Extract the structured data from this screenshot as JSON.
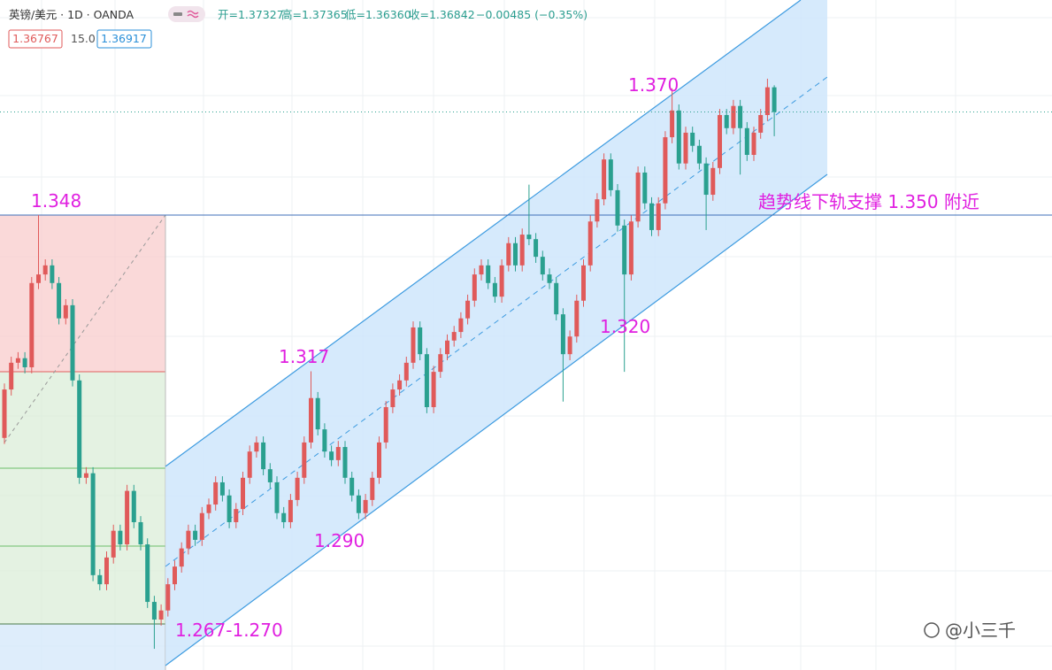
{
  "chart_data": {
    "type": "candlestick",
    "title": "英镑/美元 · 1D · OANDA",
    "ohlc_labels": [
      "开=1.37327",
      "高=1.37365",
      "低=1.36360",
      "收=1.36842"
    ],
    "change": "−0.00485 (−0.35%)",
    "price_boxes": [
      "1.36767",
      "15.0",
      "1.36917"
    ],
    "annotations": [
      "1.348",
      "1.317",
      "1.290",
      "1.320",
      "1.370",
      "1.267-1.270",
      "趋势线下轨支撑 1.350 附近"
    ],
    "watermark": "@小三千",
    "up_color": "#e05a5a",
    "down_color": "#2aa08f",
    "ylim": [
      1.2578,
      1.3906
    ],
    "open": [
      1.3038,
      1.3134,
      1.3187,
      1.3196,
      1.3178,
      1.3345,
      1.3362,
      1.338,
      1.3345,
      1.3275,
      1.3301,
      1.3152,
      1.2959,
      1.2968,
      1.2766,
      1.2748,
      1.2801,
      1.2854,
      1.2827,
      1.2933,
      1.2871,
      1.2827,
      1.2713,
      1.2678,
      1.2696,
      1.2748,
      1.2783,
      1.2819,
      1.2854,
      1.2836,
      1.2889,
      1.2906,
      1.295,
      1.2924,
      1.2871,
      1.2897,
      1.2959,
      1.3011,
      1.3029,
      1.2976,
      1.295,
      1.2889,
      1.2871,
      1.2915,
      1.2959,
      1.3029,
      1.3117,
      1.3055,
      1.3011,
      1.2994,
      1.302,
      1.2959,
      1.2924,
      1.2889,
      1.2915,
      1.2959,
      1.3029,
      1.3099,
      1.3134,
      1.3152,
      1.3187,
      1.3257,
      1.3204,
      1.3099,
      1.3169,
      1.3204,
      1.3231,
      1.3248,
      1.3275,
      1.331,
      1.3362,
      1.338,
      1.3345,
      1.3318,
      1.338,
      1.3424,
      1.338,
      1.3441,
      1.3432,
      1.3397,
      1.3362,
      1.3345,
      1.3283,
      1.3204,
      1.3239,
      1.331,
      1.338,
      1.3467,
      1.3511,
      1.359,
      1.3529,
      1.3459,
      1.3362,
      1.3467,
      1.3564,
      1.3503,
      1.345,
      1.3503,
      1.3634,
      1.3687,
      1.3582,
      1.3643,
      1.3617,
      1.3582,
      1.352,
      1.3573,
      1.3678,
      1.3652,
      1.3696,
      1.3652,
      1.3599,
      1.3643,
      1.3678,
      1.3733
    ],
    "high": [
      1.3146,
      1.3199,
      1.3208,
      1.3208,
      1.3357,
      1.348,
      1.3392,
      1.3392,
      1.3357,
      1.3313,
      1.3313,
      1.3164,
      1.298,
      1.298,
      1.2778,
      1.2813,
      1.2866,
      1.2866,
      1.2945,
      1.2945,
      1.2883,
      1.2839,
      1.2725,
      1.2708,
      1.276,
      1.2795,
      1.2831,
      1.2866,
      1.2866,
      1.2901,
      1.2918,
      1.2962,
      1.2962,
      1.2936,
      1.2909,
      1.2971,
      1.3023,
      1.3041,
      1.3041,
      1.2988,
      1.2962,
      1.2901,
      1.2927,
      1.2971,
      1.3041,
      1.317,
      1.3129,
      1.3067,
      1.3023,
      1.3032,
      1.3032,
      1.2971,
      1.2936,
      1.2927,
      1.2971,
      1.3041,
      1.3111,
      1.3146,
      1.3164,
      1.3199,
      1.3269,
      1.3269,
      1.3216,
      1.3181,
      1.3216,
      1.3243,
      1.326,
      1.3287,
      1.3322,
      1.3374,
      1.3392,
      1.3392,
      1.3357,
      1.3392,
      1.3436,
      1.3436,
      1.3453,
      1.354,
      1.3444,
      1.3409,
      1.3374,
      1.3357,
      1.3295,
      1.3251,
      1.3322,
      1.3392,
      1.3479,
      1.3523,
      1.3602,
      1.3602,
      1.3541,
      1.3471,
      1.3479,
      1.3576,
      1.3576,
      1.3515,
      1.3515,
      1.3646,
      1.3731,
      1.3699,
      1.3655,
      1.3655,
      1.3629,
      1.3594,
      1.3585,
      1.369,
      1.369,
      1.3708,
      1.3708,
      1.3664,
      1.3655,
      1.369,
      1.375,
      1.3737
    ],
    "low": [
      1.3026,
      1.3122,
      1.3175,
      1.3166,
      1.3166,
      1.3333,
      1.335,
      1.3333,
      1.3263,
      1.3263,
      1.314,
      1.2947,
      1.2947,
      1.2754,
      1.2736,
      1.2736,
      1.2789,
      1.2815,
      1.2815,
      1.2859,
      1.2815,
      1.2701,
      1.262,
      1.2666,
      1.2684,
      1.2736,
      1.2771,
      1.2807,
      1.2824,
      1.2824,
      1.2877,
      1.2894,
      1.2912,
      1.2859,
      1.2859,
      1.2885,
      1.2947,
      1.2999,
      1.2964,
      1.2938,
      1.2877,
      1.2859,
      1.2859,
      1.2903,
      1.2947,
      1.3017,
      1.3043,
      1.2999,
      1.2982,
      1.2982,
      1.2947,
      1.2912,
      1.2877,
      1.2877,
      1.2903,
      1.2947,
      1.3017,
      1.3087,
      1.3122,
      1.314,
      1.3175,
      1.3192,
      1.3087,
      1.3087,
      1.3157,
      1.3192,
      1.3219,
      1.3236,
      1.3263,
      1.3298,
      1.335,
      1.3333,
      1.3306,
      1.3306,
      1.3368,
      1.3368,
      1.3368,
      1.342,
      1.3385,
      1.335,
      1.3333,
      1.3271,
      1.311,
      1.3192,
      1.3227,
      1.3298,
      1.3368,
      1.3455,
      1.3499,
      1.3517,
      1.3447,
      1.3169,
      1.335,
      1.3455,
      1.3491,
      1.3438,
      1.3438,
      1.3491,
      1.3622,
      1.357,
      1.357,
      1.3605,
      1.357,
      1.345,
      1.3508,
      1.3561,
      1.364,
      1.364,
      1.356,
      1.3587,
      1.3587,
      1.3631,
      1.3666,
      1.3636
    ],
    "close": [
      1.3134,
      1.3187,
      1.3196,
      1.3178,
      1.3345,
      1.3362,
      1.338,
      1.3345,
      1.3275,
      1.3301,
      1.3152,
      1.2959,
      1.2968,
      1.2766,
      1.2748,
      1.2801,
      1.2854,
      1.2827,
      1.2933,
      1.2871,
      1.2827,
      1.2713,
      1.2678,
      1.2696,
      1.2748,
      1.2783,
      1.2819,
      1.2854,
      1.2836,
      1.2889,
      1.2906,
      1.295,
      1.2924,
      1.2871,
      1.2897,
      1.2959,
      1.3011,
      1.3029,
      1.2976,
      1.295,
      1.2889,
      1.2871,
      1.2915,
      1.2959,
      1.3029,
      1.3117,
      1.3055,
      1.3011,
      1.2994,
      1.302,
      1.2959,
      1.2924,
      1.2889,
      1.2915,
      1.2959,
      1.3029,
      1.3099,
      1.3134,
      1.3152,
      1.3187,
      1.3257,
      1.3204,
      1.3099,
      1.3169,
      1.3204,
      1.3231,
      1.3248,
      1.3275,
      1.331,
      1.3362,
      1.338,
      1.3345,
      1.3318,
      1.338,
      1.3424,
      1.338,
      1.3441,
      1.3432,
      1.3397,
      1.3362,
      1.3345,
      1.3283,
      1.3204,
      1.3239,
      1.331,
      1.338,
      1.3467,
      1.3511,
      1.359,
      1.3529,
      1.3459,
      1.3362,
      1.3467,
      1.3564,
      1.3503,
      1.345,
      1.3503,
      1.3634,
      1.3687,
      1.3582,
      1.3643,
      1.3617,
      1.3582,
      1.352,
      1.3573,
      1.3678,
      1.3652,
      1.3696,
      1.3652,
      1.3599,
      1.3643,
      1.3678,
      1.3733,
      1.3684
    ]
  }
}
